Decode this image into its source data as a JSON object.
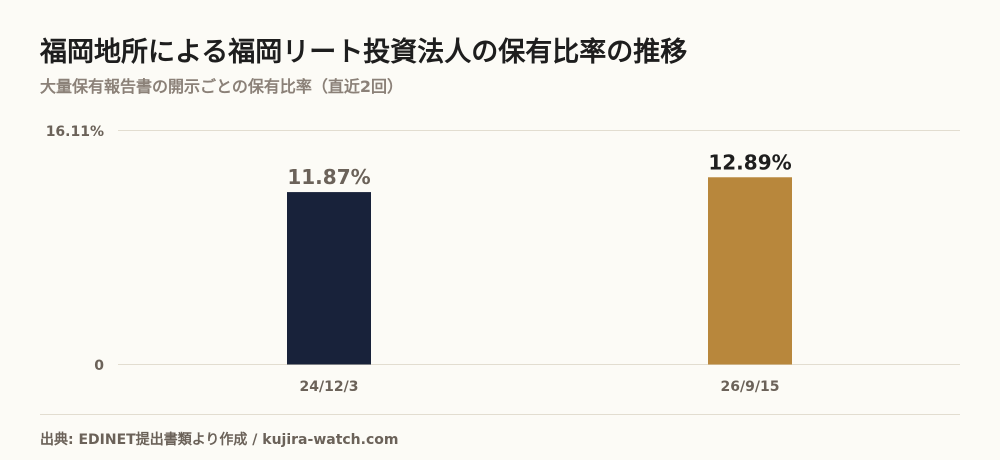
{
  "title": "福岡地所による福岡リート投資法人の保有比率の推移",
  "subtitle": "大量保有報告書の開示ごとの保有比率（直近2回）",
  "source": "出典: EDINET提出書類より作成 / kujira-watch.com",
  "colors": {
    "background": "#fcfbf6",
    "bar_previous": "#18223a",
    "bar_latest": "#b8873c",
    "label_previous": "#6b6259",
    "label_latest": "#1e1e1e",
    "gridline": "#e2ddd0"
  },
  "chart_data": {
    "type": "bar",
    "categories": [
      "24/12/3",
      "26/9/15"
    ],
    "values": [
      11.87,
      12.89
    ],
    "data_labels": [
      "11.87%",
      "12.89%"
    ],
    "y_tick_labels": [
      "0",
      "16.11%"
    ],
    "ylim": [
      0,
      16.11
    ],
    "xlabel": "",
    "ylabel": "",
    "grid": true
  }
}
